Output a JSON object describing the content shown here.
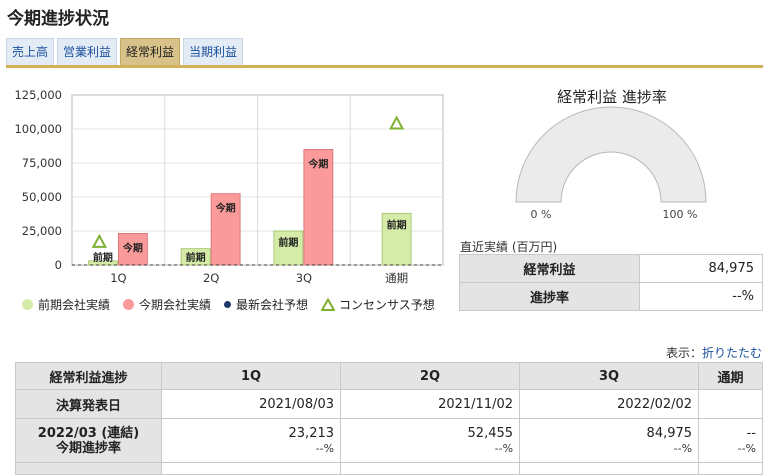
{
  "page": {
    "title": "今期進捗状況"
  },
  "tabs": [
    {
      "label": "売上高",
      "active": false
    },
    {
      "label": "営業利益",
      "active": false
    },
    {
      "label": "経常利益",
      "active": true
    },
    {
      "label": "当期利益",
      "active": false
    }
  ],
  "chart_data": {
    "type": "bar",
    "categories": [
      "1Q",
      "2Q",
      "3Q",
      "通期"
    ],
    "ylim": [
      0,
      125000
    ],
    "yticks": [
      "125,000",
      "100,000",
      "75,000",
      "50,000",
      "25,000",
      "0"
    ],
    "series": [
      {
        "name": "前期会社実績",
        "bar_label": "前期",
        "color": "#d5eca8",
        "values": [
          3000,
          12000,
          25000,
          38000
        ]
      },
      {
        "name": "今期会社実績",
        "bar_label": "今期",
        "color": "#fa9a9a",
        "values": [
          23213,
          52455,
          84975,
          null
        ]
      },
      {
        "name": "最新会社予想",
        "color": "#1f3a6a",
        "values": [
          null,
          null,
          null,
          null
        ]
      },
      {
        "name": "コンセンサス予想",
        "color": "#7fb030",
        "values": [
          17000,
          null,
          null,
          104000
        ]
      }
    ],
    "legend_position": "bottom"
  },
  "gauge": {
    "title": "経常利益 進捗率",
    "min_label": "0 %",
    "max_label": "100 %",
    "value": null,
    "track_color": "#ebebeb"
  },
  "recent": {
    "label": "直近実績 (百万円)",
    "rows": [
      {
        "header": "経常利益",
        "value": "84,975"
      },
      {
        "header": "進捗率",
        "value": "--%"
      }
    ]
  },
  "display_toggle": {
    "prefix": "表示：",
    "link": "折りたたむ"
  },
  "progress_table": {
    "headers": [
      "経常利益進捗",
      "1Q",
      "2Q",
      "3Q",
      "通期"
    ],
    "announce_row": {
      "header": "決算発表日",
      "values": [
        "2021/08/03",
        "2021/11/02",
        "2022/02/02",
        ""
      ]
    },
    "fy_row": {
      "header_main": "2022/03 (連結)",
      "header_sub": "今期進捗率",
      "values": [
        {
          "main": "23,213",
          "sub": "--%"
        },
        {
          "main": "52,455",
          "sub": "--%"
        },
        {
          "main": "84,975",
          "sub": "--%"
        },
        {
          "main": "--",
          "sub": "--%"
        }
      ]
    }
  }
}
